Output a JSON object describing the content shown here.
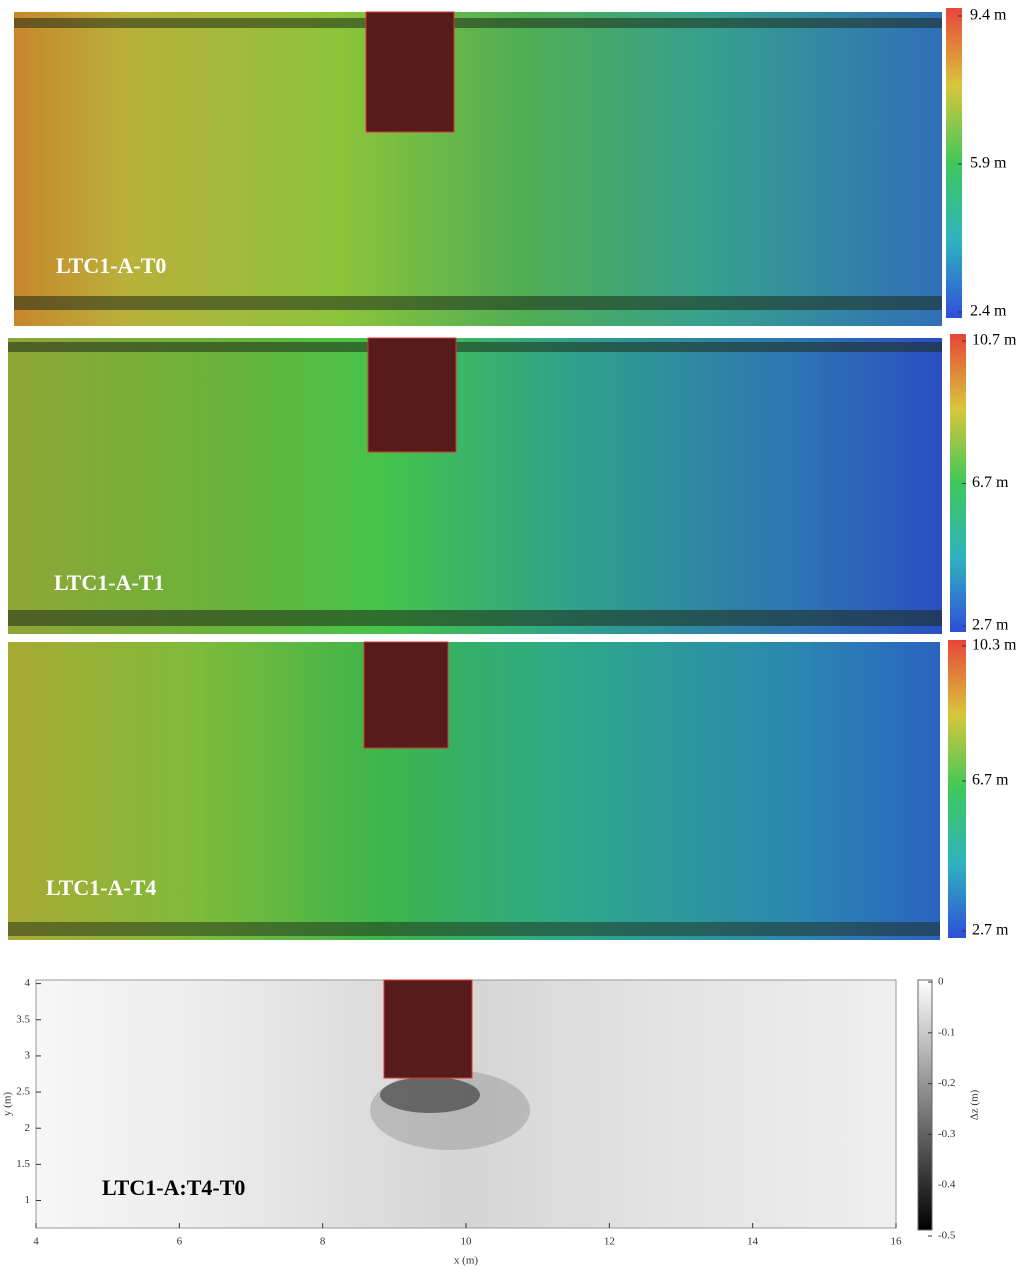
{
  "chart_data": [
    {
      "type": "heatmap",
      "title": "LTC1-A-T0",
      "clim": [
        2.4,
        9.4
      ],
      "cticks": [
        {
          "value": 9.4,
          "label": "9.4 m"
        },
        {
          "value": 5.9,
          "label": "5.9 m"
        },
        {
          "value": 2.4,
          "label": "2.4 m"
        }
      ]
    },
    {
      "type": "heatmap",
      "title": "LTC1-A-T1",
      "clim": [
        2.7,
        10.7
      ],
      "cticks": [
        {
          "value": 10.7,
          "label": "10.7 m"
        },
        {
          "value": 6.7,
          "label": "6.7 m"
        },
        {
          "value": 2.7,
          "label": "2.7 m"
        }
      ]
    },
    {
      "type": "heatmap",
      "title": "LTC1-A-T4",
      "clim": [
        2.7,
        10.3
      ],
      "cticks": [
        {
          "value": 10.3,
          "label": "10.3 m"
        },
        {
          "value": 6.7,
          "label": "6.7 m"
        },
        {
          "value": 2.7,
          "label": "2.7 m"
        }
      ]
    },
    {
      "type": "heatmap",
      "title": "LTC1-A:T4-T0",
      "x_label": "x (m)",
      "y_label": "y (m)",
      "colorbar_label": "Δz (m)",
      "xlim": [
        4,
        16
      ],
      "xticks": [
        4,
        6,
        8,
        10,
        12,
        14,
        16
      ],
      "ylim": [
        0.62,
        4.05
      ],
      "yticks": [
        1,
        1.5,
        2,
        2.5,
        3,
        3.5,
        4
      ],
      "clim": [
        -0.5,
        0
      ],
      "cticks": [
        0,
        -0.1,
        -0.2,
        -0.3,
        -0.4,
        -0.5
      ]
    }
  ]
}
